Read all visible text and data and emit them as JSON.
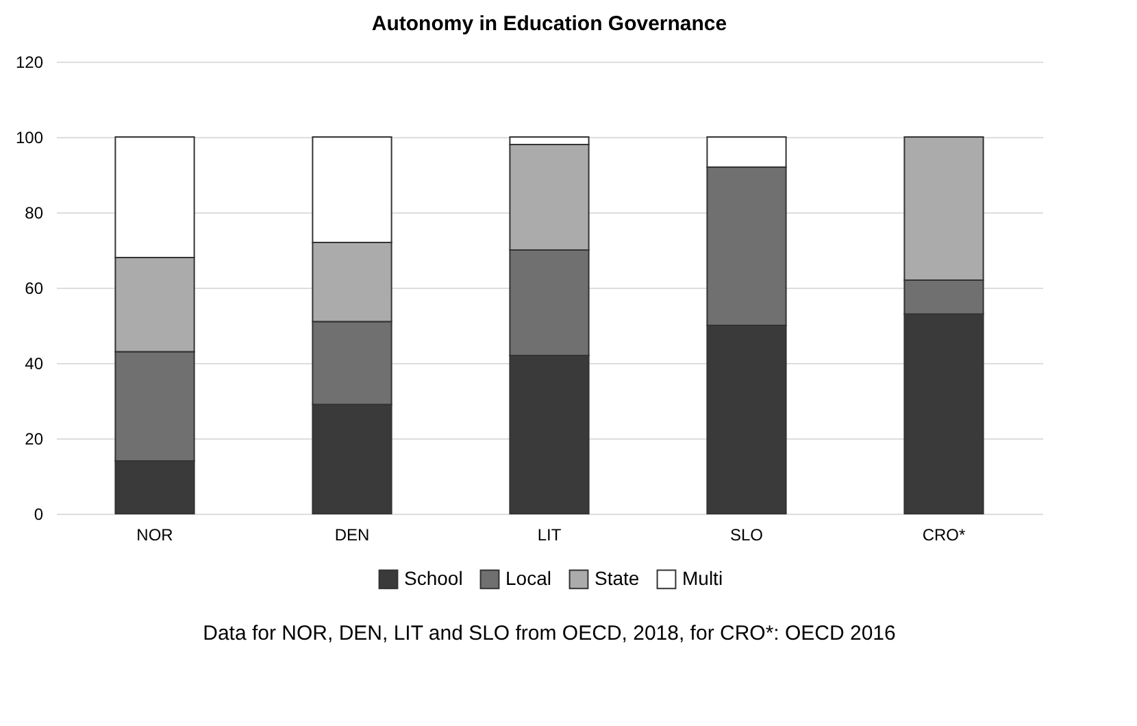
{
  "chart_data": {
    "type": "bar",
    "stacked": true,
    "title": "Autonomy in Education Governance",
    "categories": [
      "NOR",
      "DEN",
      "LIT",
      "SLO",
      "CRO*"
    ],
    "series": [
      {
        "name": "School",
        "color": "#3a3a3a",
        "values": [
          14,
          29,
          42,
          50,
          53
        ]
      },
      {
        "name": "Local",
        "color": "#707070",
        "values": [
          29,
          22,
          28,
          42,
          9
        ]
      },
      {
        "name": "State",
        "color": "#ababab",
        "values": [
          25,
          21,
          28,
          0,
          38
        ]
      },
      {
        "name": "Multi",
        "color": "#ffffff",
        "values": [
          32,
          28,
          2,
          8,
          0
        ]
      }
    ],
    "ylim": [
      0,
      120
    ],
    "yticks": [
      0,
      20,
      40,
      60,
      80,
      100,
      120
    ],
    "grid": "y",
    "legend": "bottom",
    "annotations": [
      "Data for NOR, DEN, LIT and SLO from OECD, 2018, for CRO*: OECD 2016"
    ]
  }
}
